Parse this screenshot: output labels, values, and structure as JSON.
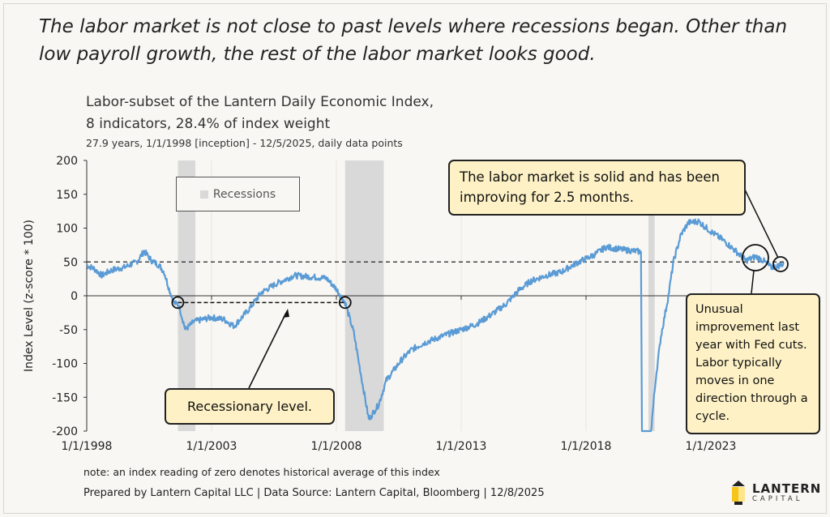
{
  "headline": "The labor market is not close to past levels where recessions began. Other than low payroll growth, the rest of the labor market looks good.",
  "chart_data": {
    "type": "line",
    "title_line1": "Labor-subset of the Lantern Daily Economic Index,",
    "title_line2": "8 indicators, 28.4% of index weight",
    "subtitle": "27.9 years, 1/1/1998 [inception] - 12/5/2025, daily data points",
    "ylabel": "Index Level (z-score * 100)",
    "ylim": [
      -200,
      200
    ],
    "yticks": [
      "200",
      "150",
      "100",
      "50",
      "0",
      "-50",
      "-100",
      "-150",
      "-200"
    ],
    "xticks": [
      {
        "label": "1/1/1998",
        "year": 1998
      },
      {
        "label": "1/1/2003",
        "year": 2003
      },
      {
        "label": "1/1/2008",
        "year": 2008
      },
      {
        "label": "1/1/2013",
        "year": 2013
      },
      {
        "label": "1/1/2018",
        "year": 2018
      },
      {
        "label": "1/1/2023",
        "year": 2023
      }
    ],
    "legend": "Recessions",
    "recessions": [
      [
        2001.65,
        2002.35
      ],
      [
        2008.35,
        2009.9
      ],
      [
        2020.5,
        2020.75
      ]
    ],
    "reference_line": 50,
    "recessionary_level": -10,
    "series": [
      {
        "name": "Labor index",
        "color": "#5b9bd5",
        "points": [
          [
            1998.0,
            45
          ],
          [
            1998.3,
            40
          ],
          [
            1998.6,
            30
          ],
          [
            1999.0,
            38
          ],
          [
            1999.5,
            42
          ],
          [
            2000.0,
            50
          ],
          [
            2000.3,
            66
          ],
          [
            2000.6,
            52
          ],
          [
            2000.9,
            45
          ],
          [
            2001.1,
            35
          ],
          [
            2001.3,
            10
          ],
          [
            2001.5,
            -10
          ],
          [
            2001.7,
            -15
          ],
          [
            2001.95,
            -50
          ],
          [
            2002.3,
            -38
          ],
          [
            2003.0,
            -32
          ],
          [
            2003.5,
            -35
          ],
          [
            2003.9,
            -45
          ],
          [
            2004.5,
            -20
          ],
          [
            2005.0,
            5
          ],
          [
            2005.6,
            18
          ],
          [
            2006.3,
            30
          ],
          [
            2007.0,
            28
          ],
          [
            2007.6,
            26
          ],
          [
            2008.0,
            10
          ],
          [
            2008.35,
            -10
          ],
          [
            2008.7,
            -55
          ],
          [
            2009.0,
            -120
          ],
          [
            2009.3,
            -183
          ],
          [
            2009.7,
            -160
          ],
          [
            2010.0,
            -125
          ],
          [
            2010.6,
            -95
          ],
          [
            2011.0,
            -80
          ],
          [
            2011.5,
            -70
          ],
          [
            2012.0,
            -63
          ],
          [
            2012.6,
            -55
          ],
          [
            2013.0,
            -50
          ],
          [
            2013.6,
            -42
          ],
          [
            2014.2,
            -28
          ],
          [
            2014.8,
            -12
          ],
          [
            2015.3,
            8
          ],
          [
            2015.8,
            22
          ],
          [
            2016.4,
            30
          ],
          [
            2017.0,
            35
          ],
          [
            2017.6,
            48
          ],
          [
            2018.3,
            60
          ],
          [
            2018.8,
            72
          ],
          [
            2019.5,
            68
          ],
          [
            2020.2,
            65
          ],
          [
            2020.24,
            -200
          ],
          [
            2020.6,
            -200
          ],
          [
            2020.8,
            -120
          ],
          [
            2021.0,
            -60
          ],
          [
            2021.3,
            0
          ],
          [
            2021.5,
            50
          ],
          [
            2021.8,
            90
          ],
          [
            2022.1,
            108
          ],
          [
            2022.5,
            110
          ],
          [
            2023.0,
            95
          ],
          [
            2023.5,
            82
          ],
          [
            2024.0,
            66
          ],
          [
            2024.4,
            52
          ],
          [
            2024.8,
            58
          ],
          [
            2025.1,
            52
          ],
          [
            2025.4,
            42
          ],
          [
            2025.7,
            44
          ],
          [
            2025.93,
            48
          ]
        ]
      }
    ]
  },
  "annotations": {
    "recessionary": "Recessionary level.",
    "solid": "The labor market is solid and has been improving for 2.5 months.",
    "unusual": "Unusual improvement last year with Fed cuts. Labor typically moves in one direction through a cycle."
  },
  "note": "note: an index reading of zero denotes historical average of this index",
  "footer": "Prepared by Lantern Capital LLC | Data Source: Lantern Capital, Bloomberg | 12/8/2025",
  "logo": {
    "name": "LANTERN",
    "sub": "CAPITAL"
  }
}
